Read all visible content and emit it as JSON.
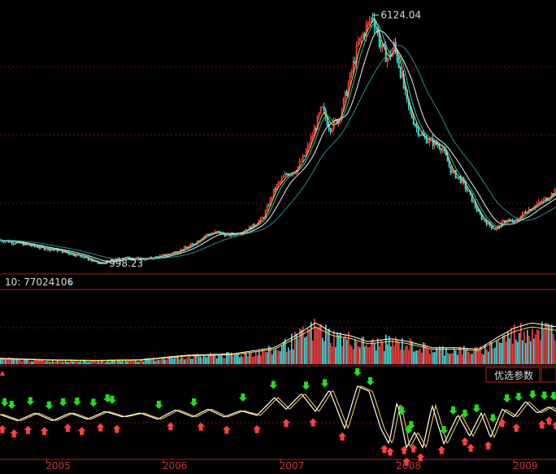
{
  "chart_data": [
    {
      "type": "candlestick",
      "panel": "price",
      "annotations": {
        "high_label": "6124.04",
        "low_label": "998.23"
      },
      "price_points": [
        [
          2004.6,
          1480
        ],
        [
          2004.7,
          1440
        ],
        [
          2004.8,
          1400
        ],
        [
          2004.9,
          1350
        ],
        [
          2005.0,
          1300
        ],
        [
          2005.1,
          1270
        ],
        [
          2005.2,
          1200
        ],
        [
          2005.3,
          1150
        ],
        [
          2005.38,
          1060
        ],
        [
          2005.45,
          998.23
        ],
        [
          2005.55,
          1060
        ],
        [
          2005.65,
          1120
        ],
        [
          2005.75,
          1100
        ],
        [
          2005.85,
          1090
        ],
        [
          2005.95,
          1140
        ],
        [
          2006.05,
          1200
        ],
        [
          2006.15,
          1280
        ],
        [
          2006.25,
          1400
        ],
        [
          2006.35,
          1580
        ],
        [
          2006.45,
          1650
        ],
        [
          2006.55,
          1580
        ],
        [
          2006.65,
          1640
        ],
        [
          2006.75,
          1750
        ],
        [
          2006.85,
          1950
        ],
        [
          2006.95,
          2550
        ],
        [
          2007.05,
          2850
        ],
        [
          2007.12,
          2900
        ],
        [
          2007.2,
          3200
        ],
        [
          2007.28,
          3700
        ],
        [
          2007.35,
          4200
        ],
        [
          2007.42,
          3800
        ],
        [
          2007.5,
          4000
        ],
        [
          2007.58,
          4700
        ],
        [
          2007.66,
          5500
        ],
        [
          2007.72,
          5800
        ],
        [
          2007.79,
          6124.04
        ],
        [
          2007.85,
          5500
        ],
        [
          2007.92,
          5200
        ],
        [
          2007.97,
          5500
        ],
        [
          2008.02,
          5000
        ],
        [
          2008.08,
          4300
        ],
        [
          2008.16,
          3800
        ],
        [
          2008.22,
          3600
        ],
        [
          2008.3,
          3500
        ],
        [
          2008.38,
          3400
        ],
        [
          2008.46,
          2900
        ],
        [
          2008.55,
          2700
        ],
        [
          2008.62,
          2400
        ],
        [
          2008.7,
          2000
        ],
        [
          2008.78,
          1800
        ],
        [
          2008.84,
          1700
        ],
        [
          2008.92,
          1900
        ],
        [
          2009.0,
          1850
        ],
        [
          2009.08,
          2050
        ],
        [
          2009.18,
          2200
        ],
        [
          2009.28,
          2350
        ],
        [
          2009.36,
          2500
        ]
      ],
      "ma_lines": [
        {
          "color": "#ffffff",
          "lag": 0.18
        },
        {
          "color": "#ffd84a",
          "lag": 0.05
        },
        {
          "color": "#2ec8c8",
          "lag": 0.09
        },
        {
          "color": "#33b0b0",
          "lag": 0.4
        }
      ],
      "ylim": [
        900,
        6300
      ],
      "xlim": [
        2004.6,
        2009.36
      ]
    },
    {
      "type": "bar",
      "panel": "volume",
      "label": "10: 77024106",
      "ylim": [
        0,
        100
      ],
      "volume_envelope": [
        [
          2004.6,
          8
        ],
        [
          2005.0,
          6
        ],
        [
          2005.4,
          5
        ],
        [
          2005.8,
          6
        ],
        [
          2006.2,
          12
        ],
        [
          2006.6,
          14
        ],
        [
          2006.95,
          22
        ],
        [
          2007.15,
          40
        ],
        [
          2007.3,
          55
        ],
        [
          2007.45,
          42
        ],
        [
          2007.6,
          38
        ],
        [
          2007.75,
          30
        ],
        [
          2007.95,
          34
        ],
        [
          2008.1,
          30
        ],
        [
          2008.3,
          22
        ],
        [
          2008.5,
          22
        ],
        [
          2008.7,
          20
        ],
        [
          2008.85,
          35
        ],
        [
          2009.0,
          48
        ],
        [
          2009.15,
          55
        ],
        [
          2009.36,
          50
        ]
      ]
    },
    {
      "type": "line",
      "panel": "indicator",
      "button_label": "优选参数",
      "ylim": [
        0,
        100
      ],
      "wave_points": [
        [
          2004.6,
          58
        ],
        [
          2004.75,
          50
        ],
        [
          2004.9,
          60
        ],
        [
          2005.05,
          50
        ],
        [
          2005.2,
          60
        ],
        [
          2005.35,
          52
        ],
        [
          2005.5,
          62
        ],
        [
          2005.65,
          55
        ],
        [
          2005.8,
          60
        ],
        [
          2005.95,
          52
        ],
        [
          2006.1,
          64
        ],
        [
          2006.25,
          55
        ],
        [
          2006.38,
          65
        ],
        [
          2006.52,
          55
        ],
        [
          2006.66,
          63
        ],
        [
          2006.8,
          57
        ],
        [
          2006.95,
          80
        ],
        [
          2007.05,
          65
        ],
        [
          2007.18,
          85
        ],
        [
          2007.3,
          62
        ],
        [
          2007.42,
          90
        ],
        [
          2007.55,
          40
        ],
        [
          2007.66,
          95
        ],
        [
          2007.76,
          88
        ],
        [
          2007.86,
          40
        ],
        [
          2007.93,
          20
        ],
        [
          2008.0,
          75
        ],
        [
          2008.08,
          15
        ],
        [
          2008.15,
          35
        ],
        [
          2008.22,
          15
        ],
        [
          2008.3,
          70
        ],
        [
          2008.4,
          20
        ],
        [
          2008.52,
          58
        ],
        [
          2008.62,
          30
        ],
        [
          2008.72,
          60
        ],
        [
          2008.8,
          28
        ],
        [
          2008.9,
          65
        ],
        [
          2009.0,
          55
        ],
        [
          2009.1,
          75
        ],
        [
          2009.2,
          60
        ],
        [
          2009.3,
          68
        ],
        [
          2009.36,
          62
        ]
      ],
      "buy_signals": [
        2004.62,
        2004.72,
        2004.84,
        2004.98,
        2005.18,
        2005.3,
        2005.46,
        2005.6,
        2006.06,
        2006.32,
        2006.54,
        2006.8,
        2007.05,
        2007.28,
        2007.53,
        2007.89,
        2007.94,
        2008.06,
        2008.08,
        2008.14,
        2008.2,
        2008.38,
        2008.58,
        2008.63,
        2008.78,
        2008.9,
        2009.02,
        2009.24,
        2009.3,
        2009.36
      ],
      "sell_signals": [
        2004.64,
        2004.7,
        2004.86,
        2005.02,
        2005.14,
        2005.26,
        2005.4,
        2005.52,
        2005.56,
        2005.96,
        2006.26,
        2006.68,
        2006.94,
        2007.22,
        2007.38,
        2007.66,
        2007.77,
        2008.04,
        2008.12,
        2008.1,
        2008.4,
        2008.48,
        2008.58,
        2008.68,
        2008.82,
        2008.94,
        2009.04,
        2009.16,
        2009.26,
        2009.34
      ]
    }
  ],
  "x_axis": {
    "tick_labels": [
      "2005",
      "2006",
      "2007",
      "2008",
      "2009"
    ],
    "tick_values": [
      2005,
      2006,
      2007,
      2008,
      2009
    ],
    "label_color": "#cc3333"
  }
}
